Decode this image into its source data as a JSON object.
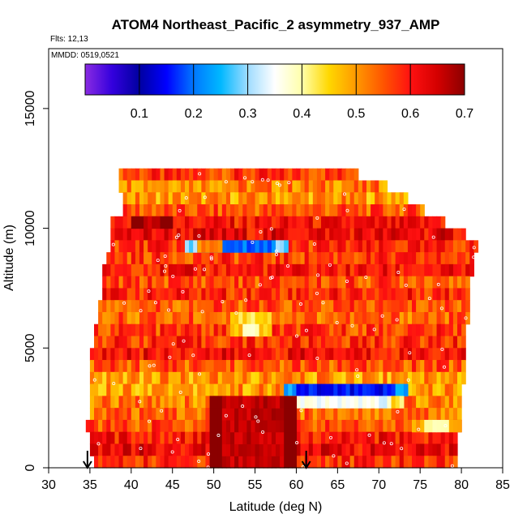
{
  "chart_data": {
    "type": "heatmap",
    "title": "ATOM4 Northeast_Pacific_2 asymmetry_937_AMP",
    "annotations": {
      "flights": "Flts: 12,13",
      "dates": "MMDD: 0519,0521"
    },
    "xlabel": "Latitude (deg N)",
    "ylabel": "Altitude (m)",
    "xlim": [
      30,
      85
    ],
    "ylim": [
      0,
      17500
    ],
    "x_ticks": [
      "30",
      "35",
      "40",
      "45",
      "50",
      "55",
      "60",
      "65",
      "70",
      "75",
      "80",
      "85"
    ],
    "y_ticks": [
      "0",
      "5000",
      "10000",
      "15000"
    ],
    "colorbar": {
      "range": [
        0,
        0.7
      ],
      "tick_labels": [
        "0.1",
        "0.2",
        "0.3",
        "0.4",
        "0.5",
        "0.6",
        "0.7"
      ],
      "colors": [
        "#8a2be2",
        "#3300dd",
        "#0000a0",
        "#0000ff",
        "#0077ff",
        "#00b8ff",
        "#9fdcff",
        "#ffffff",
        "#ffffaa",
        "#ffd700",
        "#ff9900",
        "#ff5500",
        "#ff1111",
        "#d40000",
        "#8b0000"
      ]
    },
    "layers": [
      {
        "alt": 12000,
        "lat": [
          38.5,
          67.5
        ],
        "value": 0.57
      },
      {
        "alt": 11500,
        "lat": [
          38.5,
          71.0
        ],
        "value": 0.52
      },
      {
        "alt": 11000,
        "lat": [
          39.0,
          73.5
        ],
        "value": 0.5
      },
      {
        "alt": 10500,
        "lat": [
          39.0,
          75.5
        ],
        "value": 0.55
      },
      {
        "alt": 10000,
        "lat": [
          37.5,
          78.0
        ],
        "value": 0.6
      },
      {
        "alt": 9500,
        "lat": [
          37.5,
          80.5
        ],
        "value": 0.62
      },
      {
        "alt": 9000,
        "lat": [
          37.5,
          82.0
        ],
        "value": 0.58
      },
      {
        "alt": 8500,
        "lat": [
          37.0,
          81.5
        ],
        "value": 0.57
      },
      {
        "alt": 8000,
        "lat": [
          36.5,
          81.5
        ],
        "value": 0.6
      },
      {
        "alt": 7500,
        "lat": [
          36.5,
          81.0
        ],
        "value": 0.56
      },
      {
        "alt": 7000,
        "lat": [
          36.5,
          81.0
        ],
        "value": 0.59
      },
      {
        "alt": 6500,
        "lat": [
          36.0,
          81.0
        ],
        "value": 0.55
      },
      {
        "alt": 6000,
        "lat": [
          36.0,
          81.0
        ],
        "value": 0.54
      },
      {
        "alt": 5500,
        "lat": [
          35.5,
          80.5
        ],
        "value": 0.57
      },
      {
        "alt": 5000,
        "lat": [
          35.5,
          80.5
        ],
        "value": 0.58
      },
      {
        "alt": 4500,
        "lat": [
          35.0,
          80.5
        ],
        "value": 0.61
      },
      {
        "alt": 4000,
        "lat": [
          35.0,
          80.5
        ],
        "value": 0.55
      },
      {
        "alt": 3500,
        "lat": [
          35.0,
          80.5
        ],
        "value": 0.5
      },
      {
        "alt": 3000,
        "lat": [
          35.0,
          80.0
        ],
        "value": 0.5
      },
      {
        "alt": 2500,
        "lat": [
          35.0,
          80.0
        ],
        "value": 0.52
      },
      {
        "alt": 2000,
        "lat": [
          35.0,
          80.0
        ],
        "value": 0.53
      },
      {
        "alt": 1500,
        "lat": [
          34.5,
          80.0
        ],
        "value": 0.56
      },
      {
        "alt": 1000,
        "lat": [
          35.0,
          79.5
        ],
        "value": 0.6
      },
      {
        "alt": 500,
        "lat": [
          35.0,
          79.5
        ],
        "value": 0.62
      },
      {
        "alt": 0,
        "lat": [
          35.5,
          79.5
        ],
        "value": 0.58
      }
    ],
    "features": [
      {
        "alt": [
          9000,
          9500
        ],
        "lat": [
          46.5,
          59.0
        ],
        "value": 0.2
      },
      {
        "alt": [
          9000,
          9500
        ],
        "lat": [
          48.0,
          51.0
        ],
        "value": 0.42
      },
      {
        "alt": [
          6000,
          6500
        ],
        "lat": [
          50.5,
          58.5
        ],
        "value": 0.44
      },
      {
        "alt": [
          5500,
          6000
        ],
        "lat": [
          52.0,
          57.0
        ],
        "value": 0.38
      },
      {
        "alt": [
          3000,
          3500
        ],
        "lat": [
          58.5,
          73.5
        ],
        "value": 0.15
      },
      {
        "alt": [
          2500,
          3000
        ],
        "lat": [
          58.0,
          73.0
        ],
        "value": 0.35
      },
      {
        "alt": [
          1500,
          2000
        ],
        "lat": [
          74.0,
          80.0
        ],
        "value": 0.4
      },
      {
        "alt": [
          0,
          3000
        ],
        "lat": [
          49.5,
          60.0
        ],
        "value": 0.66
      },
      {
        "alt": [
          10000,
          10500
        ],
        "lat": [
          40.0,
          45.0
        ],
        "value": 0.67
      }
    ],
    "flight_start_markers": [
      34.7,
      61.2
    ]
  }
}
